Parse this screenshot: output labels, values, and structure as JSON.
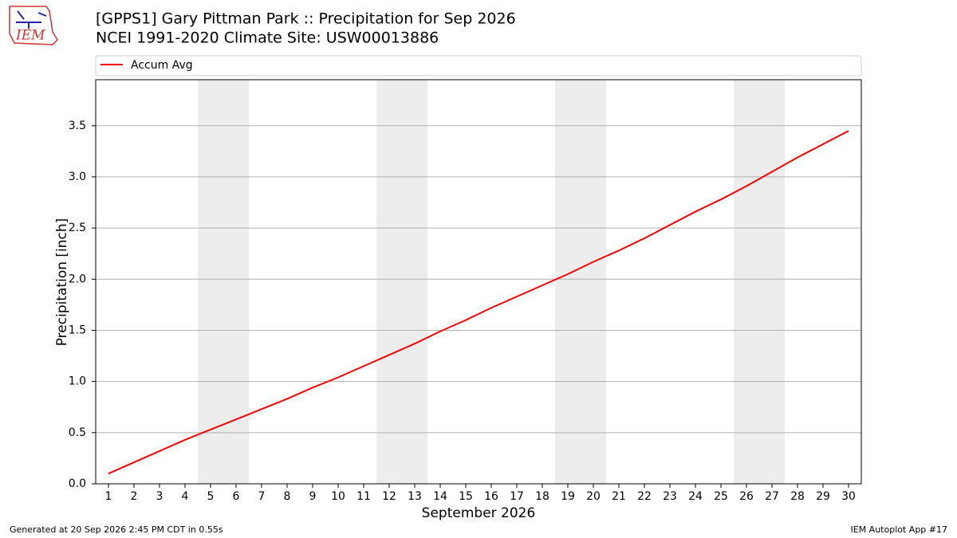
{
  "chart_data": {
    "type": "line",
    "logo_text": "IEM",
    "title": "[GPPS1] Gary Pittman Park :: Precipitation for Sep 2026",
    "subtitle": "NCEI 1991-2020 Climate Site: USW00013886",
    "x_label": "September 2026",
    "y_label": "Precipitation [inch]",
    "footer_left": "Generated at 20 Sep 2026 2:45 PM CDT in 0.55s",
    "footer_right": "IEM Autoplot App #17",
    "x": [
      1,
      2,
      3,
      4,
      5,
      6,
      7,
      8,
      9,
      10,
      11,
      12,
      13,
      14,
      15,
      16,
      17,
      18,
      19,
      20,
      21,
      22,
      23,
      24,
      25,
      26,
      27,
      28,
      29,
      30
    ],
    "series": [
      {
        "name": "Accum Avg",
        "color": "#ff0000",
        "values": [
          0.1,
          0.21,
          0.32,
          0.43,
          0.53,
          0.63,
          0.73,
          0.83,
          0.94,
          1.04,
          1.15,
          1.26,
          1.37,
          1.49,
          1.6,
          1.72,
          1.83,
          1.94,
          2.05,
          2.17,
          2.28,
          2.4,
          2.53,
          2.66,
          2.78,
          2.91,
          3.05,
          3.19,
          3.32,
          3.45
        ]
      }
    ],
    "shaded_ranges": [
      [
        4.5,
        6.5
      ],
      [
        11.5,
        13.5
      ],
      [
        18.5,
        20.5
      ],
      [
        25.5,
        27.5
      ]
    ],
    "shade_color": "#ededed",
    "xlim": [
      0.5,
      30.5
    ],
    "xticks": [
      1,
      2,
      3,
      4,
      5,
      6,
      7,
      8,
      9,
      10,
      11,
      12,
      13,
      14,
      15,
      16,
      17,
      18,
      19,
      20,
      21,
      22,
      23,
      24,
      25,
      26,
      27,
      28,
      29,
      30
    ],
    "ylim": [
      0,
      3.95
    ],
    "yticks": [
      {
        "value": 0,
        "label": "0.0"
      },
      0.5,
      {
        "value": 1,
        "label": "1.0"
      },
      1.5,
      {
        "value": 2,
        "label": "2.0"
      },
      2.5,
      {
        "value": 3,
        "label": "3.0"
      },
      3.5
    ],
    "grid": true,
    "legend": "top"
  }
}
